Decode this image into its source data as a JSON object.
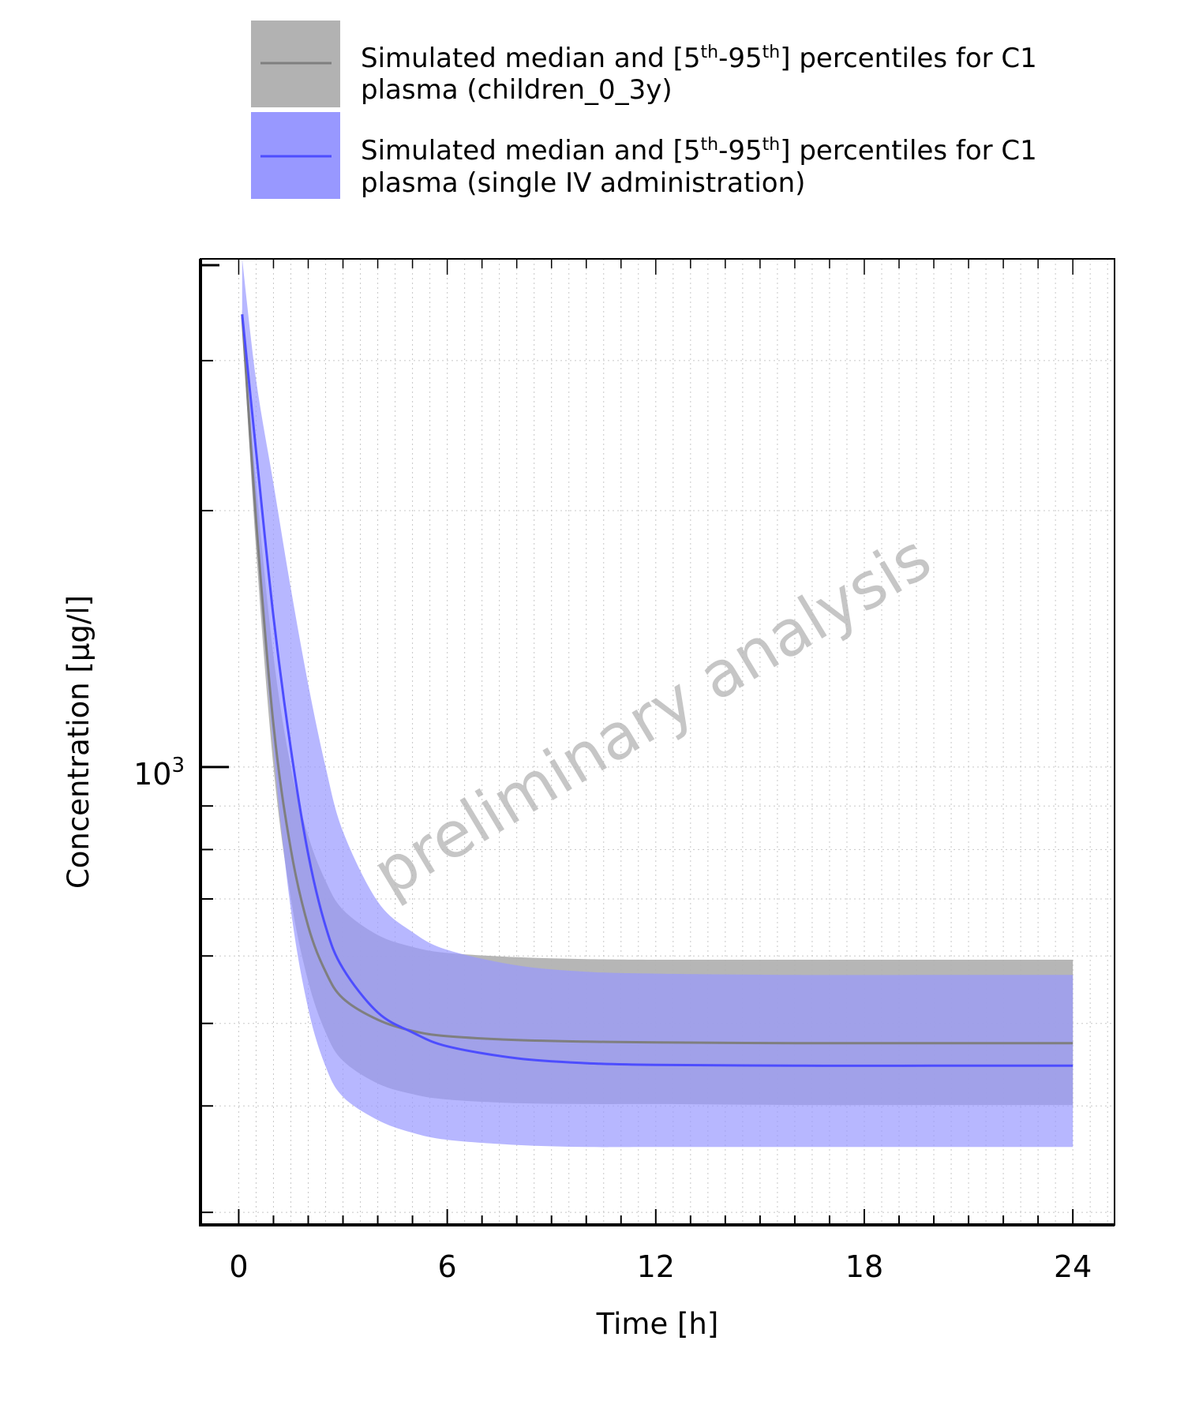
{
  "chart_data": {
    "type": "area",
    "xlabel": "Time [h]",
    "ylabel": "Concentration [µg/l]",
    "xlim": [
      -1.1,
      25.2
    ],
    "ylim": [
      290,
      3950
    ],
    "yscale": "log",
    "xticks": [
      0,
      6,
      12,
      18,
      24
    ],
    "xtick_labels": [
      "0",
      "6",
      "12",
      "18",
      "24"
    ],
    "yticks": [
      1000
    ],
    "ytick_label": {
      "base": "10",
      "exponent": "3"
    },
    "grid": true,
    "legend_position": "top",
    "watermark": "preliminary analysis",
    "series": [
      {
        "legend_main": "Simulated median and [5",
        "legend_sup1": "th",
        "legend_mid": "-95",
        "legend_sup2": "th",
        "legend_end": "] percentiles for C1",
        "legend_line2": "plasma (children_0_3y)",
        "color": "#7f7f7f",
        "band_color": "#b2b2b2",
        "x": [
          0.1,
          0.5,
          1.0,
          1.5,
          2.0,
          2.5,
          3.0,
          4.0,
          5.0,
          6.0,
          8.0,
          10.0,
          12.0,
          16.0,
          20.0,
          24.0
        ],
        "median": [
          3400,
          1950,
          1120,
          800,
          650,
          575,
          535,
          505,
          490,
          483,
          478,
          476,
          475,
          474,
          474,
          474
        ],
        "lower": [
          3300,
          1800,
          1000,
          700,
          560,
          488,
          452,
          425,
          413,
          407,
          403,
          402,
          402,
          401,
          401,
          401
        ],
        "upper": [
          3450,
          2150,
          1350,
          1000,
          830,
          735,
          680,
          635,
          615,
          605,
          598,
          595,
          594,
          594,
          594,
          594
        ]
      },
      {
        "legend_main": "Simulated median and [5",
        "legend_sup1": "th",
        "legend_mid": "-95",
        "legend_sup2": "th",
        "legend_end": "] percentiles for C1",
        "legend_line2": "plasma (single IV administration)",
        "color": "#4d4dff",
        "band_color": "#9898ff",
        "x": [
          0.1,
          0.5,
          1.0,
          1.5,
          2.0,
          2.5,
          3.0,
          4.0,
          5.0,
          6.0,
          8.0,
          10.0,
          12.0,
          16.0,
          20.0,
          24.0
        ],
        "median": [
          3400,
          2350,
          1500,
          1050,
          790,
          650,
          580,
          515,
          488,
          470,
          455,
          449,
          447,
          446,
          446,
          446
        ],
        "lower": [
          3350,
          1900,
          1050,
          680,
          520,
          445,
          410,
          385,
          372,
          365,
          360,
          358,
          358,
          358,
          358,
          358
        ],
        "upper": [
          3950,
          2850,
          2150,
          1620,
          1250,
          1000,
          840,
          695,
          640,
          610,
          585,
          575,
          572,
          570,
          570,
          570
        ]
      }
    ]
  }
}
